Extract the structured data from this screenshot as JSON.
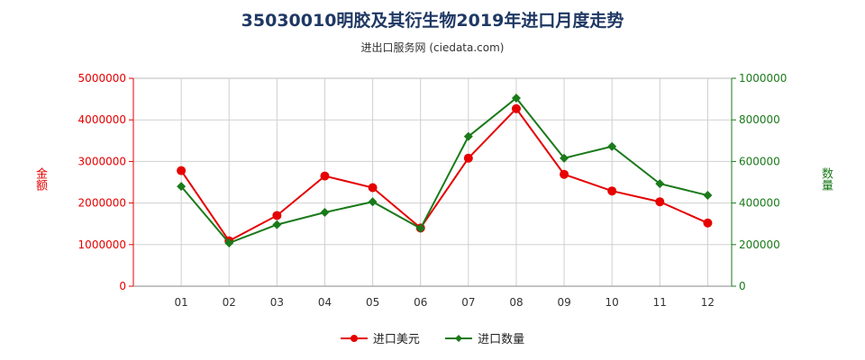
{
  "chart_data": {
    "type": "line",
    "title": "35030010明胶及其衍生物2019年进口月度走势",
    "subtitle": "进出口服务网 (ciedata.com)",
    "categories": [
      "01",
      "02",
      "03",
      "04",
      "05",
      "06",
      "07",
      "08",
      "09",
      "10",
      "11",
      "12"
    ],
    "left_axis": {
      "label": "金额",
      "ylim": [
        0,
        5000000
      ],
      "ticks": [
        "0",
        "1000000",
        "2000000",
        "3000000",
        "4000000",
        "5000000"
      ],
      "color": "#e60000"
    },
    "right_axis": {
      "label": "数量",
      "ylim": [
        0,
        1000000
      ],
      "ticks": [
        "0",
        "200000",
        "400000",
        "600000",
        "800000",
        "1000000"
      ],
      "color": "#1a7a1a"
    },
    "series": [
      {
        "name": "进口美元",
        "axis": "left",
        "color": "#e60000",
        "marker": "circle",
        "values": [
          2780000,
          1090000,
          1700000,
          2650000,
          2370000,
          1400000,
          3080000,
          4270000,
          2690000,
          2290000,
          2030000,
          1520000
        ]
      },
      {
        "name": "进口数量",
        "axis": "right",
        "color": "#1a7a1a",
        "marker": "diamond",
        "values": [
          480000,
          208000,
          296000,
          355000,
          406000,
          278000,
          720000,
          905000,
          616000,
          672000,
          493000,
          437000
        ]
      }
    ],
    "grid": true,
    "legend": "bottom-center"
  }
}
